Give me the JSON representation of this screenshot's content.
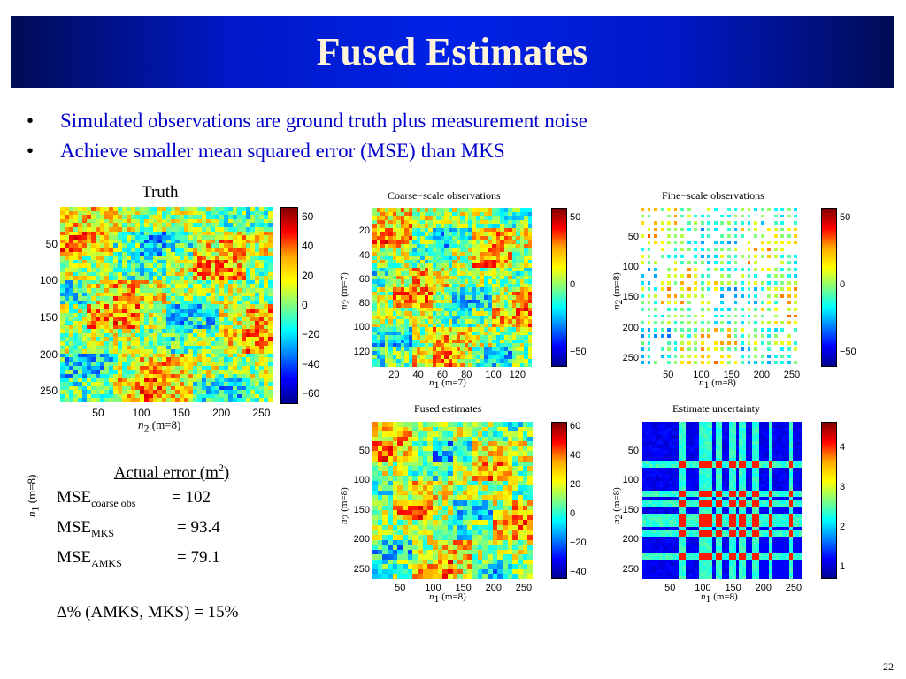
{
  "slide": {
    "title": "Fused Estimates",
    "bullets": [
      "Simulated observations are ground truth plus measurement noise",
      "Achieve smaller mean squared error (MSE) than MKS"
    ],
    "page_number": "22"
  },
  "panels": {
    "truth": {
      "title": "Truth",
      "ylabel_var": "n",
      "ylabel_sub": "1",
      "ylabel_rest": " (m=8)",
      "xlabel_var": "n",
      "xlabel_sub": "2",
      "xlabel_rest": " (m=8)",
      "yticks": [
        "50",
        "100",
        "150",
        "200",
        "250"
      ],
      "xticks": [
        "50",
        "100",
        "150",
        "200",
        "250"
      ],
      "cbar_ticks": [
        "60",
        "40",
        "20",
        "0",
        "−20",
        "−40",
        "−60"
      ]
    },
    "coarse": {
      "title": "Coarse−scale observations",
      "ylabel_var": "n",
      "ylabel_sub": "2",
      "ylabel_rest": " (m=7)",
      "xlabel_var": "n",
      "xlabel_sub": "1",
      "xlabel_rest": " (m=7)",
      "yticks": [
        "20",
        "40",
        "60",
        "80",
        "100",
        "120"
      ],
      "xticks": [
        "20",
        "40",
        "60",
        "80",
        "100",
        "120"
      ],
      "cbar_ticks": [
        "50",
        "0",
        "−50"
      ]
    },
    "fine": {
      "title": "Fine−scale observations",
      "ylabel_var": "n",
      "ylabel_sub": "2",
      "ylabel_rest": " (m=8)",
      "xlabel_var": "n",
      "xlabel_sub": "1",
      "xlabel_rest": " (m=8)",
      "yticks": [
        "50",
        "100",
        "150",
        "200",
        "250"
      ],
      "xticks": [
        "50",
        "100",
        "150",
        "200",
        "250"
      ],
      "cbar_ticks": [
        "50",
        "0",
        "−50"
      ]
    },
    "fused": {
      "title": "Fused estimates",
      "ylabel_var": "n",
      "ylabel_sub": "2",
      "ylabel_rest": " (m=8)",
      "xlabel_var": "n",
      "xlabel_sub": "1",
      "xlabel_rest": " (m=8)",
      "yticks": [
        "50",
        "100",
        "150",
        "200",
        "250"
      ],
      "xticks": [
        "50",
        "100",
        "150",
        "200",
        "250"
      ],
      "cbar_ticks": [
        "60",
        "40",
        "20",
        "0",
        "−20",
        "−40"
      ]
    },
    "uncertainty": {
      "title": "Estimate uncertainty",
      "ylabel_var": "n",
      "ylabel_sub": "2",
      "ylabel_rest": " (m=8)",
      "xlabel_var": "n",
      "xlabel_sub": "1",
      "xlabel_rest": " (m=8)",
      "yticks": [
        "50",
        "100",
        "150",
        "200",
        "250"
      ],
      "xticks": [
        "50",
        "100",
        "150",
        "200",
        "250"
      ],
      "cbar_ticks": [
        "4",
        "3",
        "2",
        "1"
      ]
    }
  },
  "errors": {
    "header": "Actual error (m",
    "header_sup": "2",
    "header_close": ")",
    "rows": [
      {
        "base": "MSE",
        "sub": "coarse obs",
        "value": "= 102"
      },
      {
        "base": "MSE",
        "sub": "MKS",
        "value": "= 93.4"
      },
      {
        "base": "MSE",
        "sub": "AMKS",
        "value": "= 79.1"
      }
    ],
    "delta": "∆% (AMKS, MKS) = 15%"
  },
  "colors": {
    "title_text": "#fff3d8",
    "bullet_text": "#0000cc",
    "title_bar": "#0022e6"
  }
}
